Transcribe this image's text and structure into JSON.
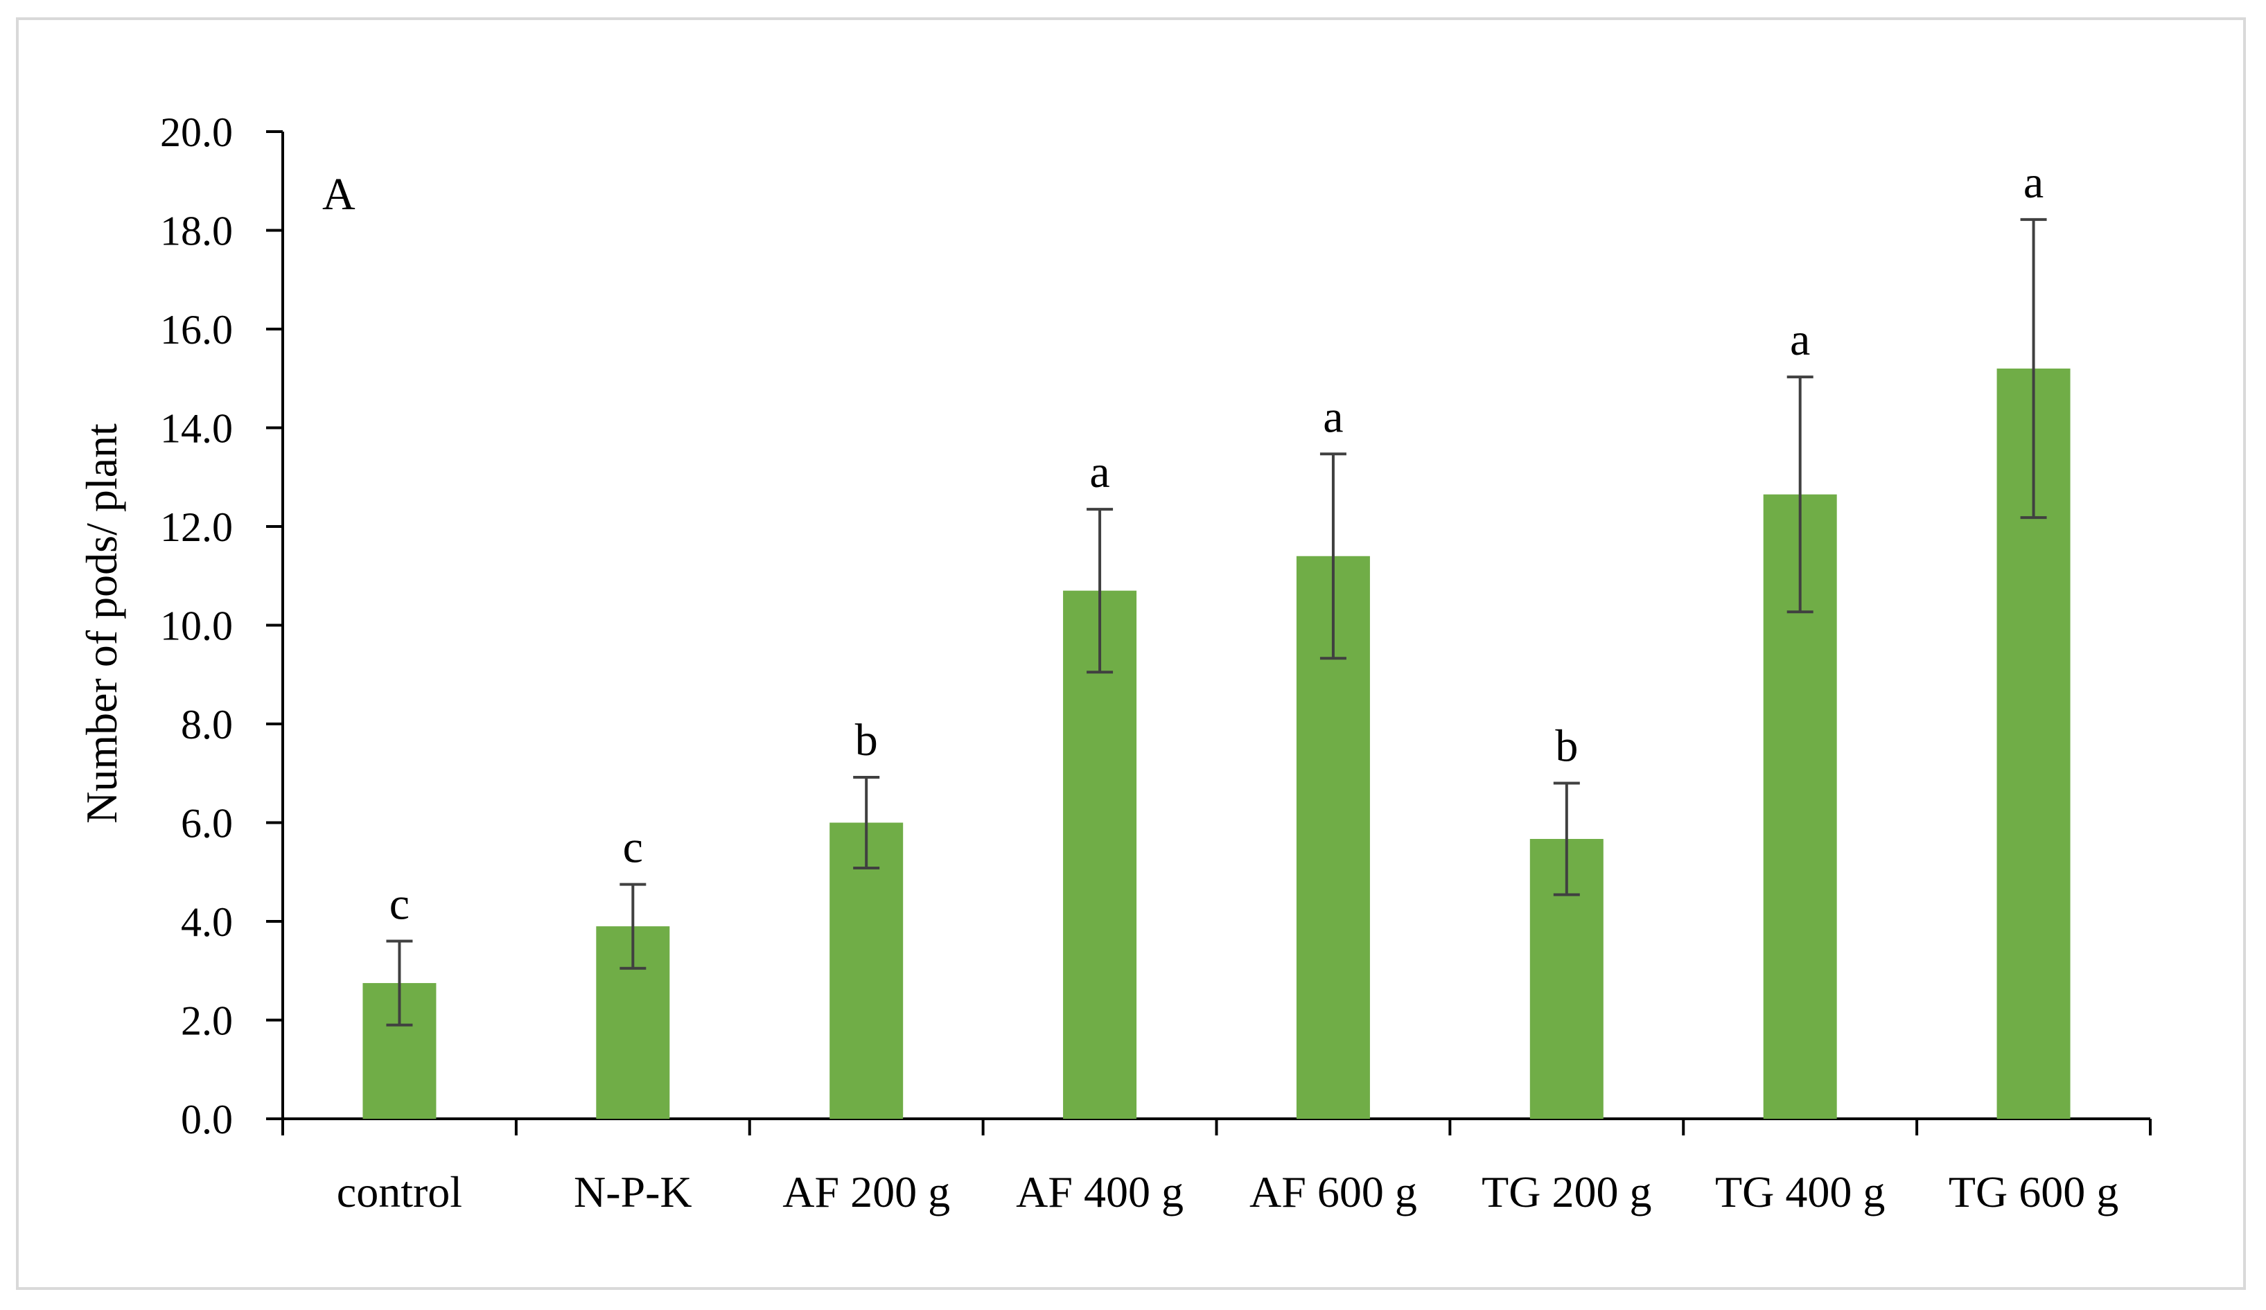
{
  "chart_data": {
    "type": "bar",
    "panel_label": "A",
    "ylabel": "Number of pods/ plant",
    "xlabel": "",
    "ylim": [
      0,
      20
    ],
    "yticks": [
      "0.0",
      "2.0",
      "4.0",
      "6.0",
      "8.0",
      "10.0",
      "12.0",
      "14.0",
      "16.0",
      "18.0",
      "20.0"
    ],
    "categories": [
      "control",
      "N-P-K",
      "AF 200 g",
      "AF 400 g",
      "AF 600 g",
      "TG 200 g",
      "TG 400 g",
      "TG 600 g"
    ],
    "values": [
      2.75,
      3.9,
      6.0,
      10.7,
      11.4,
      5.67,
      12.65,
      15.2
    ],
    "errors": [
      0.85,
      0.85,
      0.92,
      1.65,
      2.07,
      1.13,
      2.38,
      3.02
    ],
    "significance_letters": [
      "c",
      "c",
      "b",
      "a",
      "a",
      "b",
      "a",
      "a"
    ],
    "bar_color": "#70ad47",
    "error_bar_color": "#404040",
    "grid": false,
    "legend": "none"
  }
}
